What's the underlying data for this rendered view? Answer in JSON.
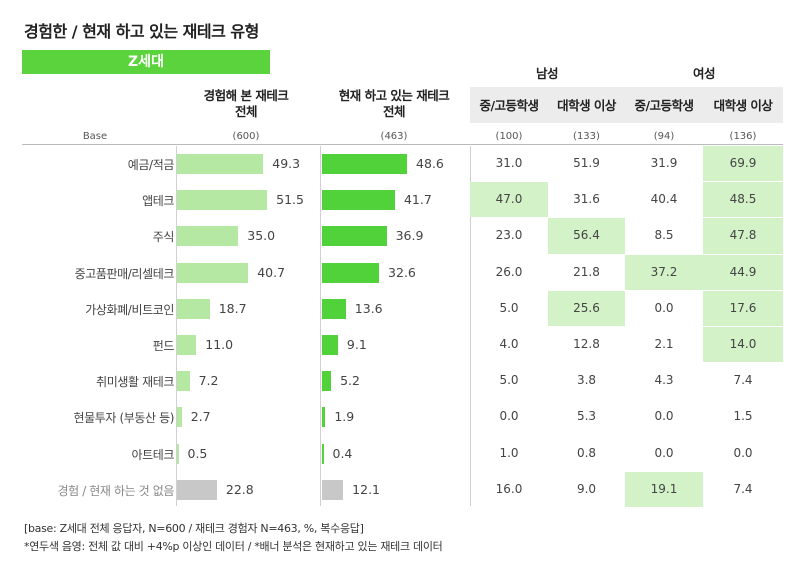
{
  "title": "경험한 / 현재 하고 있는 재테크 유형",
  "banner": "Z세대",
  "headers": {
    "experienced": "경험해 본 재테크\n전체",
    "current": "현재 하고 있는 재테크\n전체",
    "male": "남성",
    "female": "여성",
    "middle_high": "중/고등학생",
    "college": "대학생 이상",
    "base_label": "Base",
    "base_experienced": "(600)",
    "base_current": "(463)",
    "base_m_mh": "(100)",
    "base_m_col": "(133)",
    "base_f_mh": "(94)",
    "base_f_col": "(136)"
  },
  "chart_data": {
    "type": "bar",
    "categories": [
      "예금/적금",
      "앱테크",
      "주식",
      "중고품판매/리셀테크",
      "가상화폐/비트코인",
      "펀드",
      "취미생활 재테크",
      "현물투자 (부동산 등)",
      "아트테크",
      "경험 / 현재 하는 것 없음"
    ],
    "series": [
      {
        "name": "경험해 본 재테크 전체",
        "values": [
          49.3,
          51.5,
          35.0,
          40.7,
          18.7,
          11.0,
          7.2,
          2.7,
          0.5,
          22.8
        ]
      },
      {
        "name": "현재 하고 있는 재테크 전체",
        "values": [
          48.6,
          41.7,
          36.9,
          32.6,
          13.6,
          9.1,
          5.2,
          1.9,
          0.4,
          12.1
        ]
      }
    ],
    "table": {
      "columns": [
        "남성 중/고등학생",
        "남성 대학생 이상",
        "여성 중/고등학생",
        "여성 대학생 이상"
      ],
      "rows": [
        [
          31.0,
          51.9,
          31.9,
          69.9
        ],
        [
          47.0,
          31.6,
          40.4,
          48.5
        ],
        [
          23.0,
          56.4,
          8.5,
          47.8
        ],
        [
          26.0,
          21.8,
          37.2,
          44.9
        ],
        [
          5.0,
          25.6,
          0.0,
          17.6
        ],
        [
          4.0,
          12.8,
          2.1,
          14.0
        ],
        [
          5.0,
          3.8,
          4.3,
          7.4
        ],
        [
          0.0,
          5.3,
          0.0,
          1.5
        ],
        [
          1.0,
          0.8,
          0.0,
          0.0
        ],
        [
          16.0,
          9.0,
          19.1,
          7.4
        ]
      ],
      "highlighted": [
        [
          false,
          false,
          false,
          true
        ],
        [
          true,
          false,
          false,
          true
        ],
        [
          false,
          true,
          false,
          true
        ],
        [
          false,
          false,
          true,
          true
        ],
        [
          false,
          true,
          false,
          true
        ],
        [
          false,
          false,
          false,
          true
        ],
        [
          false,
          false,
          false,
          false
        ],
        [
          false,
          false,
          false,
          false
        ],
        [
          false,
          false,
          false,
          false
        ],
        [
          false,
          false,
          true,
          false
        ]
      ]
    },
    "colors": {
      "experienced": "#b5e8a2",
      "current": "#52d23a",
      "none_bar": "#c8c8c8",
      "highlight": "#d3f2c8"
    }
  },
  "footer": {
    "line1": "[base: Z세대 전체 응답자, N=600 / 재테크 경험자 N=463, %, 복수응답]",
    "line2": "*연두색 음영: 전체 값 대비 +4%p 이상인 데이터 / *배너 분석은 현재하고 있는 재테크 데이터"
  }
}
